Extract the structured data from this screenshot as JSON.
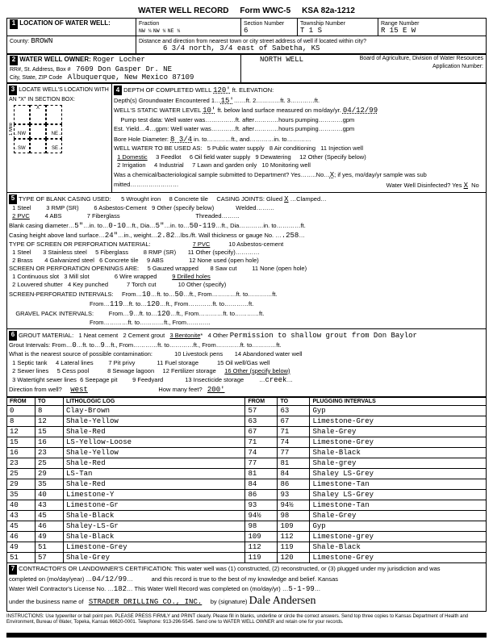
{
  "form": {
    "title": "WATER WELL RECORD",
    "form_no": "Form WWC-5",
    "ksa": "KSA 82a-1212"
  },
  "s1": {
    "heading": "LOCATION OF WATER WELL:",
    "fraction": "Fraction",
    "nw1": "NW ¼",
    "nw2": "NW ¼",
    "ne": "NE ¼",
    "section_label": "Section Number",
    "section": "6",
    "township_label": "Township Number",
    "township": "T 1 S",
    "range_label": "Range Number",
    "range": "R 15 E W",
    "county_label": "County:",
    "county": "BROWN",
    "direction_label": "Distance and direction from nearest town or city street address of well if located within city?",
    "direction": "6 3/4 north, 3/4 east of Sabetha, KS"
  },
  "s2": {
    "heading": "WATER WELL OWNER:",
    "name": "Roger Locher",
    "addr_label": "RR#, St. Address, Box #",
    "addr": "7609 Don Gasper Dr. NE",
    "city_label": "City, State, ZIP Code",
    "city": "Albuquerque, New Mexico  87109",
    "well_name": "NORTH WELL",
    "board": "Board of Agriculture, Division of Water Resources",
    "app_label": "Application Number:"
  },
  "s3": {
    "heading": "LOCATE WELL'S LOCATION WITH AN \"X\" IN SECTION BOX:",
    "nw": "NW",
    "ne": "NE",
    "sw": "SW",
    "se": "SE",
    "w": "W",
    "e": "E",
    "mile": "1 Mile"
  },
  "s4": {
    "heading": "DEPTH OF COMPLETED WELL",
    "depth": "120'",
    "elev_label": "ft. ELEVATION:",
    "gw_label": "Depth(s) Groundwater Encountered",
    "gw1": "15'",
    "swl_label": "WELL'S STATIC WATER LEVEL",
    "swl": "10'",
    "swl_date_label": "ft. below land surface measured on mo/day/yr.",
    "swl_date": "04/12/99",
    "pump_label": "Pump test data: Well water was",
    "yield_label": "Est. Yield",
    "yield_unit": "gpm: Well water was",
    "bore_label": "Bore Hole Diameter:",
    "bore": "8 3/4",
    "water_use_label": "WELL WATER TO BE USED AS:",
    "u1": "1 Domestic",
    "u2": "2 Irrigation",
    "u3": "3 Feedlot",
    "u4": "4 Industrial",
    "u5": "5 Public water supply",
    "u6": "6 Oil field water supply",
    "u7": "7 Lawn and garden only",
    "u8": "8 Air conditioning",
    "u9": "9 Dewatering",
    "u10": "10 Monitoring well",
    "u11": "11 Injection well",
    "u12": "12 Other (Specify below)",
    "chem_label": "Was a chemical/bacteriological sample submitted to Department? Yes……..No…",
    "chem_x": "X",
    "chem_tail": "; if yes, mo/day/yr sample was sub",
    "disinfect_label": "Water Well Disinfected? Yes",
    "disinfect": "X",
    "no": "No"
  },
  "s5": {
    "heading": "TYPE OF BLANK CASING USED:",
    "c1": "1 Steel",
    "c2": "2 PVC",
    "c3": "3 RMP (SR)",
    "c4": "4 ABS",
    "c5": "5 Wrought iron",
    "c6": "6 Asbestos-Cement",
    "c7": "7 Fiberglass",
    "c8": "8 Concrete tile",
    "c9": "9 Other (specify below)",
    "joints_label": "CASING JOINTS: Glued",
    "joints_x": "X",
    "clamped": "Clamped",
    "welded": "Welded",
    "threaded": "Threaded",
    "blank_dia_label": "Blank casing diameter",
    "blank_dia": "5\"",
    "blank_from": "0-10",
    "blank_dia2": "5\"",
    "blank_to": "50-119",
    "height_label": "Casing height above land surface",
    "height": "24\"",
    "weight": "2.82",
    "thickness": ".258",
    "screen_label": "TYPE OF SCREEN OR PERFORATION MATERIAL:",
    "sc1": "1 Steel",
    "sc2": "2 Brass",
    "sc3": "3 Stainless steel",
    "sc4": "4 Galvanized steel",
    "sc5": "5 Fiberglass",
    "sc6": "6 Concrete tile",
    "sc7": "7 PVC",
    "sc8": "8 RMP (SR)",
    "sc9": "9 ABS",
    "sc10": "10 Asbestos-cement",
    "sc11": "11 Other (specify)",
    "sc12": "12 None used (open hole)",
    "open_label": "SCREEN OR PERFORATION OPENINGS ARE:",
    "o1": "1 Continuous slot",
    "o2": "2 Louvered shutter",
    "o3": "3 Mill slot",
    "o4": "4 Key punched",
    "o5": "5 Gauzed wrapped",
    "o6": "6 Wire wrapped",
    "o7": "7 Torch cut",
    "o8": "8 Saw cut",
    "o9": "9 Drilled holes",
    "o10": "10 Other (specify)",
    "o11": "11 None (open hole)",
    "spi_label": "SCREEN-PERFORATED INTERVALS:",
    "gpi_label": "GRAVEL PACK INTERVALS:",
    "spi": [
      {
        "from": "10",
        "to": "50"
      },
      {
        "from": "119",
        "to": "120"
      }
    ],
    "gpi": [
      {
        "from": "9",
        "to": "120"
      }
    ]
  },
  "s6": {
    "heading": "GROUT MATERIAL:",
    "g1": "1 Neat cement",
    "g2": "2 Cement grout",
    "g3": "3 Bentonite",
    "g4": "4 Other",
    "perm": "Permission to shallow grout from Don Baylor",
    "gi_label": "Grout Intervals: From",
    "gi_from": "0",
    "gi_to": "9",
    "contam_label": "What is the nearest source of possible contamination:",
    "p1": "1 Septic tank",
    "p2": "2 Sewer lines",
    "p3": "3 Watertight sewer lines",
    "p4": "4 Lateral lines",
    "p5": "5 Cess pool",
    "p6": "6 Seepage pit",
    "p7": "7 Pit privy",
    "p8": "8 Sewage lagoon",
    "p9": "9 Feedyard",
    "p10": "10 Livestock pens",
    "p11": "11 Fuel storage",
    "p12": "12 Fertilizer storage",
    "p13": "13 Insecticide storage",
    "p14": "14 Abandoned water well",
    "p15": "15 Oil well/Gas well",
    "p16": "16 Other (specify below)",
    "other": "creek",
    "dir_label": "Direction from well?",
    "dir": "west",
    "feet_label": "How many feet?",
    "feet": "200'"
  },
  "log": {
    "h_from": "FROM",
    "h_to": "TO",
    "h_lith": "LITHOLOGIC LOG",
    "h_from2": "FROM",
    "h_to2": "TO",
    "h_plug": "PLUGGING INTERVALS",
    "rows": [
      {
        "f": "0",
        "t": "8",
        "l": "Clay-Brown",
        "f2": "57",
        "t2": "63",
        "p": "Gyp"
      },
      {
        "f": "8",
        "t": "12",
        "l": "Shale-Yellow",
        "f2": "63",
        "t2": "67",
        "p": "Limestone-Grey"
      },
      {
        "f": "12",
        "t": "15",
        "l": "Shale-Red",
        "f2": "67",
        "t2": "71",
        "p": "Shale-Grey"
      },
      {
        "f": "15",
        "t": "16",
        "l": "LS-Yellow-Loose",
        "f2": "71",
        "t2": "74",
        "p": "Limestone-Grey"
      },
      {
        "f": "16",
        "t": "23",
        "l": "Shale-Yellow",
        "f2": "74",
        "t2": "77",
        "p": "Shale-Black"
      },
      {
        "f": "23",
        "t": "25",
        "l": "Shale-Red",
        "f2": "77",
        "t2": "81",
        "p": "Shale-grey"
      },
      {
        "f": "25",
        "t": "29",
        "l": "LS-Tan",
        "f2": "81",
        "t2": "84",
        "p": "Shaley LS-Grey"
      },
      {
        "f": "29",
        "t": "35",
        "l": "Shale-Red",
        "f2": "84",
        "t2": "86",
        "p": "Limestone-Tan"
      },
      {
        "f": "35",
        "t": "40",
        "l": "Limestone-Y",
        "f2": "86",
        "t2": "93",
        "p": "Shaley LS-Grey"
      },
      {
        "f": "40",
        "t": "43",
        "l": "Limestone-Gr",
        "f2": "93",
        "t2": "94½",
        "p": "Limestone-Tan"
      },
      {
        "f": "43",
        "t": "45",
        "l": "Shale-Black",
        "f2": "94½",
        "t2": "98",
        "p": "Shale-Grey"
      },
      {
        "f": "45",
        "t": "46",
        "l": "Shaley-LS-Gr",
        "f2": "98",
        "t2": "109",
        "p": "Gyp"
      },
      {
        "f": "46",
        "t": "49",
        "l": "Shale-Black",
        "f2": "109",
        "t2": "112",
        "p": "Limestone-grey"
      },
      {
        "f": "49",
        "t": "51",
        "l": "Limestone-Grey",
        "f2": "112",
        "t2": "119",
        "p": "Shale-Black"
      },
      {
        "f": "51",
        "t": "57",
        "l": "Shale-Grey",
        "f2": "119",
        "t2": "120",
        "p": "Limestone-Grey"
      }
    ]
  },
  "s7": {
    "cert": "CONTRACTOR'S OR LANDOWNER'S CERTIFICATION: This water well was (1) constructed, (2) reconstructed, or (3) plugged under my jurisdiction and was",
    "completed_label": "completed on (mo/day/year)",
    "completed": "04/12/99",
    "cert2": "and this record is true to the best of my knowledge and belief. Kansas",
    "lic_label": "Water Well Contractor's License No.",
    "lic": "182",
    "rec_label": "This Water Well Record was completed on (mo/day/yr)",
    "rec_date": "5-1-99",
    "biz_label": "under the business name of",
    "biz": "STRADER DRILLING CO., INC.",
    "sig_label": "by (signature)",
    "sig": "Dale Andersen"
  },
  "instructions": "INSTRUCTIONS: Use typewriter or ball point pen. PLEASE PRESS FIRMLY and PRINT clearly. Please fill in blanks, underline or circle the correct answers. Send top three copies to Kansas Department of Health and Environment, Bureau of Water, Topeka, Kansas 66620-0001. Telephone: 913-296-5545. Send one to WATER WELL OWNER and retain one for your records."
}
